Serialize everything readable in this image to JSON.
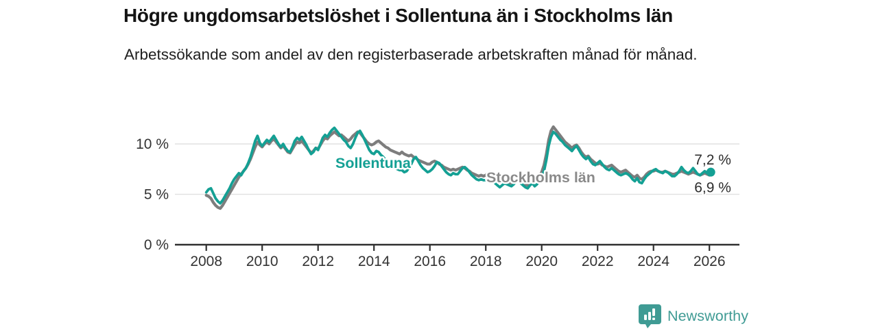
{
  "title": "Högre ungdomsarbetslöshet i Sollentuna än i Stockholms län",
  "subtitle": "Arbetssökande som andel av den registerbaserade arbetskraften månad för månad.",
  "footer": {
    "brand": "Newsworthy"
  },
  "colors": {
    "accent_teal": "#14A094",
    "line_gray": "#7D7D7D",
    "label_gray": "#8A8A8A",
    "logo_teal": "#3F9B94",
    "axis": "#2F2F2F",
    "grid": "#E2E2E2",
    "tick_text": "#333333",
    "end_label_text": "#2D2D2D"
  },
  "chart_data": {
    "type": "line",
    "title": "Högre ungdomsarbetslöshet i Sollentuna än i Stockholms län",
    "subtitle": "Arbetssökande som andel av den registerbaserade arbetskraften månad för månad.",
    "unit": "%",
    "x_start_year": 2008,
    "x_interval": "monthly",
    "x_end": "2026-01",
    "xticks": [
      2008,
      2010,
      2012,
      2014,
      2016,
      2018,
      2020,
      2022,
      2024,
      2026
    ],
    "yticks": [
      0,
      5,
      10
    ],
    "ytick_labels": [
      "0 %",
      "5 %",
      "10 %"
    ],
    "ylim": [
      0,
      12.6
    ],
    "grid": "horizontal",
    "legend_position": "inline",
    "series": [
      {
        "name": "Sollentuna",
        "color": "#14A094",
        "end_label": "7,2 %",
        "end_value": 7.2,
        "values": [
          5.2,
          5.5,
          5.6,
          5.1,
          4.6,
          4.3,
          4.1,
          4.4,
          4.8,
          5.2,
          5.6,
          6.1,
          6.5,
          6.8,
          7.1,
          6.9,
          7.3,
          7.6,
          8.1,
          8.7,
          9.5,
          10.3,
          10.8,
          10.1,
          9.8,
          10.1,
          10.4,
          10.2,
          10.5,
          10.8,
          10.4,
          10.0,
          9.7,
          10.0,
          9.6,
          9.3,
          9.2,
          9.7,
          10.3,
          10.6,
          10.4,
          10.7,
          10.3,
          9.9,
          9.4,
          9.0,
          9.2,
          9.6,
          9.4,
          10.0,
          10.6,
          10.9,
          10.7,
          11.1,
          11.4,
          11.6,
          11.3,
          11.0,
          10.7,
          10.4,
          10.2,
          9.8,
          9.6,
          10.0,
          10.6,
          11.1,
          11.3,
          10.9,
          10.4,
          9.9,
          9.4,
          9.1,
          9.0,
          9.3,
          9.2,
          8.9,
          8.7,
          8.4,
          8.2,
          8.0,
          7.8,
          7.7,
          7.5,
          7.4,
          7.4,
          7.2,
          7.3,
          7.6,
          8.0,
          8.5,
          8.7,
          8.3,
          7.9,
          7.6,
          7.4,
          7.2,
          7.3,
          7.5,
          7.8,
          8.2,
          8.1,
          7.8,
          7.5,
          7.2,
          7.0,
          6.9,
          7.1,
          7.0,
          7.0,
          7.3,
          7.6,
          7.7,
          7.5,
          7.2,
          6.9,
          6.7,
          6.5,
          6.4,
          6.5,
          6.4,
          6.4,
          6.6,
          6.7,
          6.4,
          6.1,
          5.9,
          5.7,
          5.9,
          6.1,
          6.0,
          5.9,
          5.8,
          6.0,
          6.3,
          6.4,
          6.1,
          5.9,
          5.7,
          5.6,
          5.9,
          6.1,
          5.8,
          6.0,
          6.4,
          6.8,
          7.3,
          8.4,
          9.8,
          10.7,
          11.2,
          11.0,
          10.7,
          10.4,
          10.2,
          9.9,
          9.7,
          9.5,
          9.3,
          9.6,
          9.8,
          9.4,
          9.0,
          8.7,
          8.5,
          8.7,
          8.3,
          8.0,
          7.9,
          8.1,
          8.3,
          8.0,
          7.7,
          7.5,
          7.4,
          7.6,
          7.4,
          7.2,
          7.0,
          6.9,
          7.0,
          7.1,
          7.0,
          6.8,
          6.5,
          6.3,
          6.6,
          6.2,
          6.1,
          6.5,
          6.8,
          7.0,
          7.2,
          7.4,
          7.5,
          7.3,
          7.2,
          7.1,
          7.3,
          7.2,
          7.0,
          6.8,
          6.8,
          7.0,
          7.3,
          7.7,
          7.4,
          7.2,
          7.1,
          7.3,
          7.6,
          7.3,
          7.0,
          6.9,
          7.1,
          7.3,
          7.1,
          7.2
        ]
      },
      {
        "name": "Stockholms län",
        "color": "#7D7D7D",
        "end_label": "6,9 %",
        "end_value": 6.9,
        "values": [
          4.9,
          4.8,
          4.6,
          4.2,
          3.9,
          3.7,
          3.6,
          3.9,
          4.3,
          4.7,
          5.1,
          5.5,
          5.9,
          6.3,
          6.7,
          7.0,
          7.3,
          7.6,
          8.0,
          8.5,
          9.1,
          9.7,
          10.2,
          9.9,
          9.7,
          10.0,
          10.2,
          10.0,
          10.3,
          10.5,
          10.2,
          9.9,
          9.6,
          9.8,
          9.5,
          9.2,
          9.1,
          9.5,
          9.9,
          10.2,
          10.1,
          10.3,
          10.0,
          9.7,
          9.4,
          9.1,
          9.3,
          9.6,
          9.5,
          9.9,
          10.3,
          10.6,
          10.5,
          10.8,
          11.0,
          11.2,
          11.0,
          10.8,
          10.9,
          10.7,
          10.5,
          10.3,
          10.5,
          10.8,
          11.0,
          11.2,
          11.1,
          10.8,
          10.5,
          10.2,
          10.0,
          9.9,
          10.0,
          10.2,
          10.3,
          10.1,
          9.9,
          9.7,
          9.6,
          9.4,
          9.3,
          9.2,
          9.1,
          9.0,
          9.2,
          9.0,
          8.9,
          8.8,
          8.9,
          8.7,
          8.6,
          8.4,
          8.3,
          8.2,
          8.1,
          8.0,
          8.0,
          8.2,
          8.3,
          8.2,
          8.0,
          7.9,
          7.7,
          7.6,
          7.5,
          7.4,
          7.5,
          7.4,
          7.5,
          7.6,
          7.7,
          7.6,
          7.4,
          7.3,
          7.1,
          7.0,
          6.9,
          6.8,
          6.9,
          6.8,
          6.9,
          7.1,
          7.2,
          7.0,
          6.8,
          6.6,
          6.4,
          6.3,
          6.4,
          6.3,
          6.2,
          6.1,
          6.2,
          6.4,
          6.5,
          6.3,
          6.1,
          6.0,
          5.9,
          6.0,
          6.2,
          6.3,
          6.5,
          6.8,
          7.2,
          7.9,
          9.0,
          10.4,
          11.3,
          11.7,
          11.4,
          11.1,
          10.8,
          10.5,
          10.2,
          10.0,
          9.8,
          9.6,
          9.8,
          9.9,
          9.6,
          9.2,
          8.9,
          8.7,
          8.8,
          8.5,
          8.3,
          8.1,
          8.0,
          8.1,
          7.9,
          7.8,
          7.7,
          7.8,
          7.9,
          7.7,
          7.5,
          7.3,
          7.2,
          7.3,
          7.4,
          7.2,
          7.0,
          6.8,
          6.7,
          6.9,
          6.6,
          6.5,
          6.7,
          7.0,
          7.2,
          7.3,
          7.3,
          7.4,
          7.3,
          7.2,
          7.2,
          7.3,
          7.2,
          7.1,
          7.0,
          7.0,
          7.1,
          7.2,
          7.3,
          7.2,
          7.1,
          7.0,
          7.1,
          7.2,
          7.1,
          7.0,
          6.9,
          7.0,
          7.1,
          7.0,
          6.9
        ]
      }
    ]
  }
}
